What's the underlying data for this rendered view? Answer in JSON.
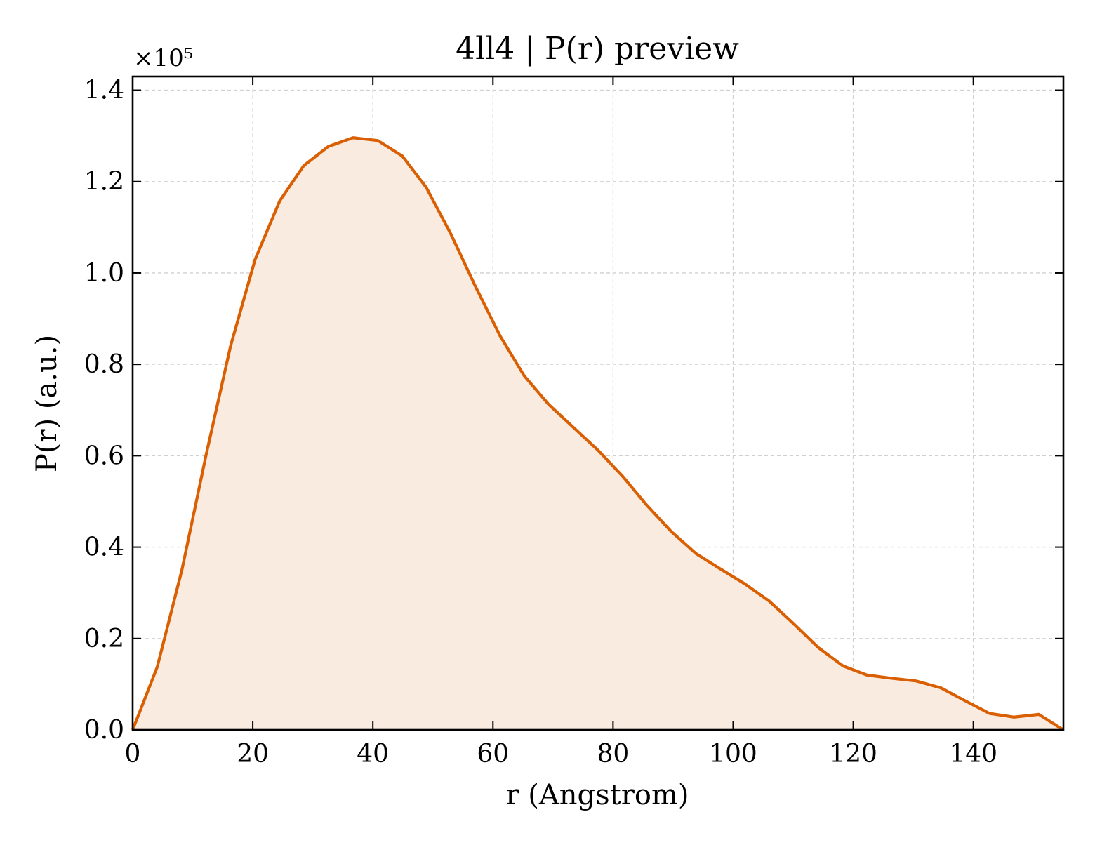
{
  "chart_data": {
    "type": "area",
    "title": "4ll4 | P(r) preview",
    "xlabel": "r (Angstrom)",
    "ylabel": "P(r) (a.u.)",
    "y_offset_label": "×10⁵",
    "xlim": [
      0,
      155
    ],
    "ylim": [
      0,
      1.43
    ],
    "y_multiplier": 100000,
    "xticks": [
      0,
      20,
      40,
      60,
      80,
      100,
      120,
      140
    ],
    "xtick_labels": [
      "0",
      "20",
      "40",
      "60",
      "80",
      "100",
      "120",
      "140"
    ],
    "yticks": [
      0.0,
      0.2,
      0.4,
      0.6,
      0.8,
      1.0,
      1.2,
      1.4
    ],
    "ytick_labels": [
      "0.0",
      "0.2",
      "0.4",
      "0.6",
      "0.8",
      "1.0",
      "1.2",
      "1.4"
    ],
    "grid": true,
    "line_color": "#d95f02",
    "fill_color": "#f9ebe0",
    "series": [
      {
        "x": [
          0,
          4.1,
          8.2,
          12.2,
          16.3,
          20.4,
          24.5,
          28.5,
          32.6,
          36.7,
          40.8,
          44.9,
          48.9,
          53.0,
          57.1,
          61.2,
          65.2,
          69.3,
          73.4,
          77.5,
          81.6,
          85.6,
          89.7,
          93.8,
          97.9,
          101.9,
          106.0,
          110.1,
          114.2,
          118.3,
          122.3,
          126.4,
          130.5,
          134.6,
          138.6,
          142.7,
          146.8,
          150.9,
          155.0
        ],
        "values": [
          0.0,
          0.138,
          0.35,
          0.6,
          0.84,
          1.03,
          1.158,
          1.235,
          1.277,
          1.296,
          1.29,
          1.256,
          1.187,
          1.085,
          0.97,
          0.862,
          0.775,
          0.712,
          0.662,
          0.612,
          0.555,
          0.492,
          0.434,
          0.386,
          0.352,
          0.32,
          0.282,
          0.232,
          0.18,
          0.14,
          0.12,
          0.113,
          0.107,
          0.092,
          0.064,
          0.036,
          0.028,
          0.034,
          0.0
        ]
      }
    ]
  }
}
